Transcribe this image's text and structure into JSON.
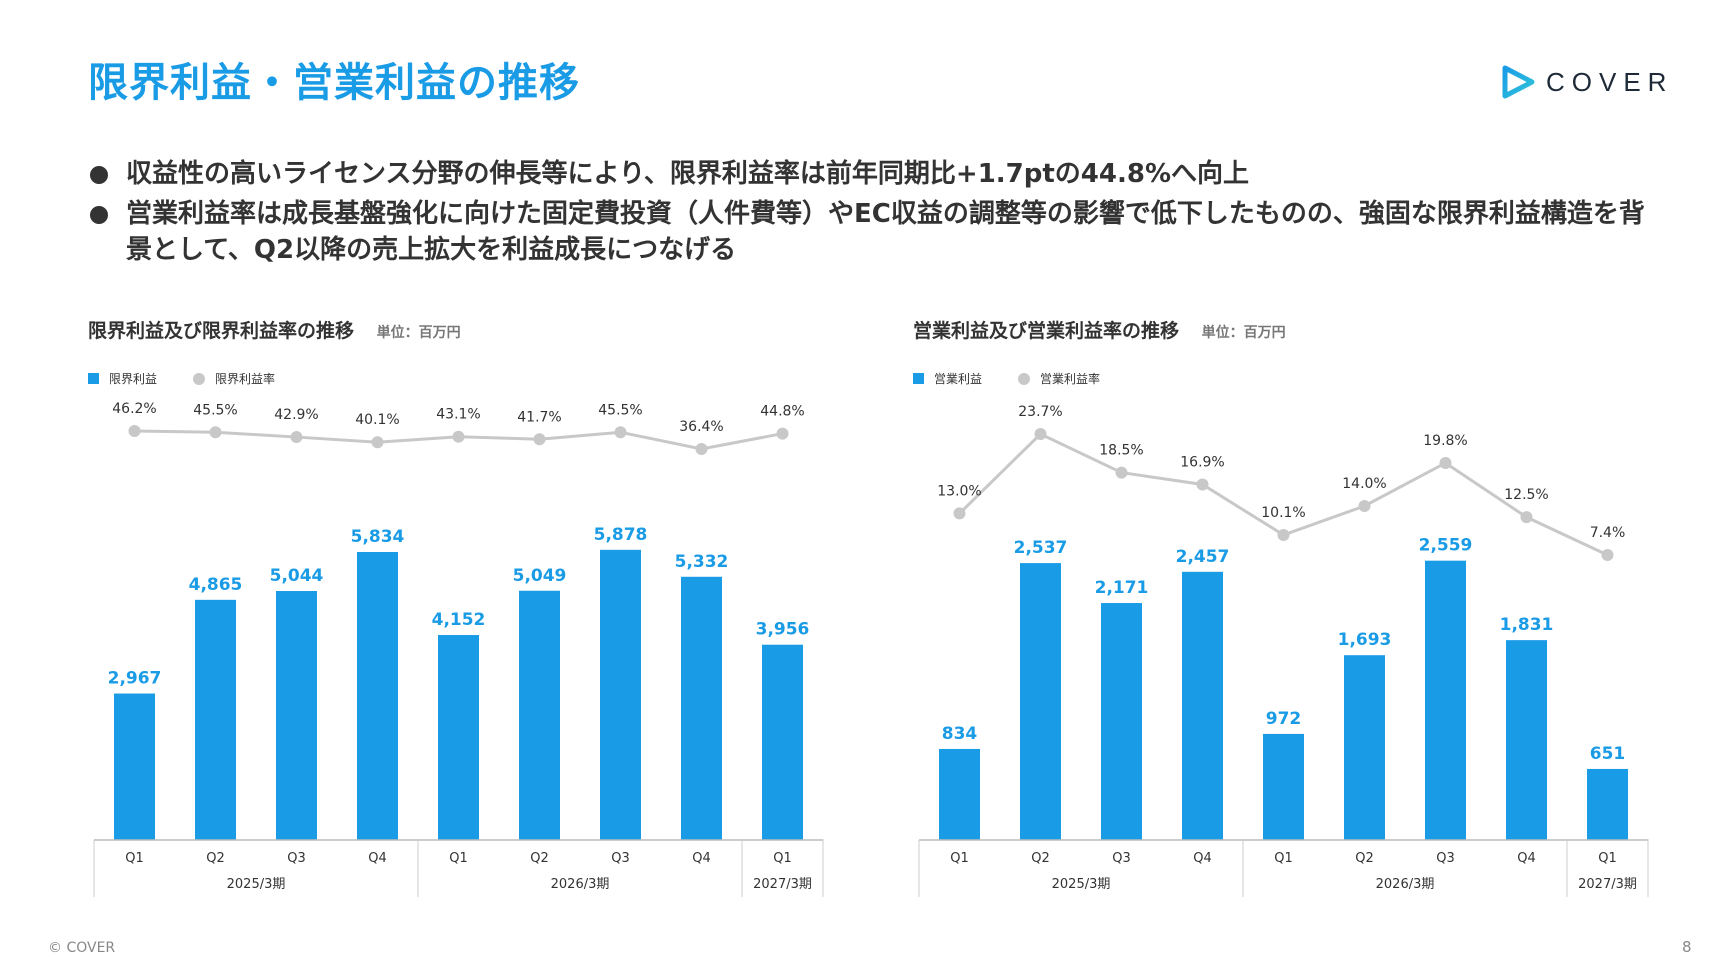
{
  "page": {
    "title": "限界利益・営業利益の推移",
    "logo_text": "COVER",
    "bullets": [
      "収益性の高いライセンス分野の伸長等により、限界利益率は前年同期比+1.7ptの44.8%へ向上",
      "営業利益率は成長基盤強化に向けた固定費投資（人件費等）やEC収益の調整等の影響で低下したものの、強固な限界利益構造を背景として、Q2以降の売上拡大を利益成長につなげる"
    ],
    "footer": "© COVER",
    "page_number": "8"
  },
  "colors": {
    "bar": "#1a9be6",
    "line": "#c8c8c8",
    "title": "#1a9be6"
  },
  "chart_data": [
    {
      "type": "bar",
      "title": "限界利益及び限界利益率の推移",
      "unit": "単位：百万円",
      "categories": [
        "Q1",
        "Q2",
        "Q3",
        "Q4",
        "Q1",
        "Q2",
        "Q3",
        "Q4",
        "Q1"
      ],
      "groups": [
        {
          "label": "2025/3期",
          "count": 4
        },
        {
          "label": "2026/3期",
          "count": 4
        },
        {
          "label": "2027/3期",
          "count": 1
        }
      ],
      "series": [
        {
          "name": "限界利益",
          "type": "bar",
          "values": [
            2967,
            4865,
            5044,
            5834,
            4152,
            5049,
            5878,
            5332,
            3956
          ],
          "labels": [
            "2,967",
            "4,865",
            "5,044",
            "5,834",
            "4,152",
            "5,049",
            "5,878",
            "5,332",
            "3,956"
          ]
        },
        {
          "name": "限界利益率",
          "type": "line",
          "values": [
            46.2,
            45.5,
            42.9,
            40.1,
            43.1,
            41.7,
            45.5,
            36.4,
            44.8
          ],
          "labels": [
            "46.2%",
            "45.5%",
            "42.9%",
            "40.1%",
            "43.1%",
            "41.7%",
            "45.5%",
            "36.4%",
            "44.8%"
          ]
        }
      ]
    },
    {
      "type": "bar",
      "title": "営業利益及び営業利益率の推移",
      "unit": "単位：百万円",
      "categories": [
        "Q1",
        "Q2",
        "Q3",
        "Q4",
        "Q1",
        "Q2",
        "Q3",
        "Q4",
        "Q1"
      ],
      "groups": [
        {
          "label": "2025/3期",
          "count": 4
        },
        {
          "label": "2026/3期",
          "count": 4
        },
        {
          "label": "2027/3期",
          "count": 1
        }
      ],
      "series": [
        {
          "name": "営業利益",
          "type": "bar",
          "values": [
            834,
            2537,
            2171,
            2457,
            972,
            1693,
            2559,
            1831,
            651
          ],
          "labels": [
            "834",
            "2,537",
            "2,171",
            "2,457",
            "972",
            "1,693",
            "2,559",
            "1,831",
            "651"
          ]
        },
        {
          "name": "営業利益率",
          "type": "line",
          "values": [
            13.0,
            23.7,
            18.5,
            16.9,
            10.1,
            14.0,
            19.8,
            12.5,
            7.4
          ],
          "labels": [
            "13.0%",
            "23.7%",
            "18.5%",
            "16.9%",
            "10.1%",
            "14.0%",
            "19.8%",
            "12.5%",
            "7.4%"
          ]
        }
      ]
    }
  ]
}
